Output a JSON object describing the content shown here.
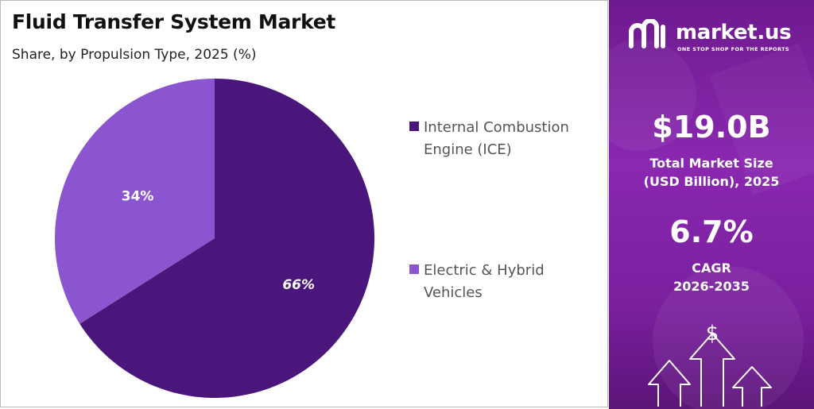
{
  "chart": {
    "title": "Fluid Transfer System Market",
    "subtitle": "Share, by Propulsion Type, 2025 (%)"
  },
  "chart_data": {
    "type": "pie",
    "title": "Fluid Transfer System Market",
    "subtitle": "Share, by Propulsion Type, 2025 (%)",
    "categories": [
      "Internal Combustion Engine (ICE)",
      "Electric & Hybrid Vehicles"
    ],
    "values": [
      66,
      34
    ],
    "value_labels": [
      "66%",
      "34%"
    ],
    "colors": [
      "#4a167c",
      "#8a55cf"
    ],
    "legend_placement": "right"
  },
  "legend": {
    "items": [
      {
        "label": "Internal Combustion Engine (ICE)",
        "color": "#4a167c"
      },
      {
        "label": "Electric & Hybrid Vehicles",
        "color": "#8a55cf"
      }
    ]
  },
  "brand": {
    "name": "market.us",
    "tagline": "ONE STOP SHOP FOR THE REPORTS"
  },
  "stats": {
    "market_size_value": "$19.0B",
    "market_size_label": "Total Market Size\n(USD Billion), 2025",
    "cagr_value": "6.7%",
    "cagr_label": "CAGR\n2026-2035"
  },
  "icons": [
    "dollar-icon",
    "up-arrow-icon"
  ],
  "colors": {
    "accent_dark": "#4a167c",
    "accent_light": "#8a55cf",
    "panel": "#7c22a3"
  }
}
